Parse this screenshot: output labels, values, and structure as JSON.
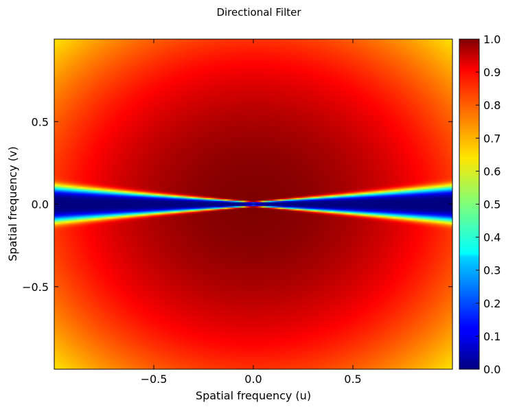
{
  "chart_data": {
    "type": "heatmap",
    "title": "Directional Filter",
    "xlabel": "Spatial frequency (u)",
    "ylabel": "Spatial frequency (v)",
    "xlim": [
      -1.0,
      1.0
    ],
    "ylim": [
      -1.0,
      1.0
    ],
    "xticks": [
      -0.5,
      0.0,
      0.5
    ],
    "xtick_labels": [
      "−0.5",
      "0.0",
      "0.5"
    ],
    "yticks": [
      -0.5,
      0.0,
      0.5
    ],
    "ytick_labels": [
      "−0.5",
      "0.0",
      "0.5"
    ],
    "colormap": "jet",
    "colorbar": {
      "range": [
        0.0,
        1.0
      ],
      "ticks": [
        0.0,
        0.1,
        0.2,
        0.3,
        0.4,
        0.5,
        0.6,
        0.7,
        0.8,
        0.9,
        1.0
      ],
      "tick_labels": [
        "0.0",
        "0.1",
        "0.2",
        "0.3",
        "0.4",
        "0.5",
        "0.6",
        "0.7",
        "0.8",
        "0.9",
        "1.0"
      ]
    },
    "grid": false,
    "surface": {
      "description": "1.0 at the centre, decreasing radially to about 0.65 at the corners; about 0 inside a thin horizontal wedge along v=0 that widens toward |u|=1",
      "center_value": 1.0,
      "corner_value": 0.65,
      "wedge_min_value": 0.0
    }
  }
}
